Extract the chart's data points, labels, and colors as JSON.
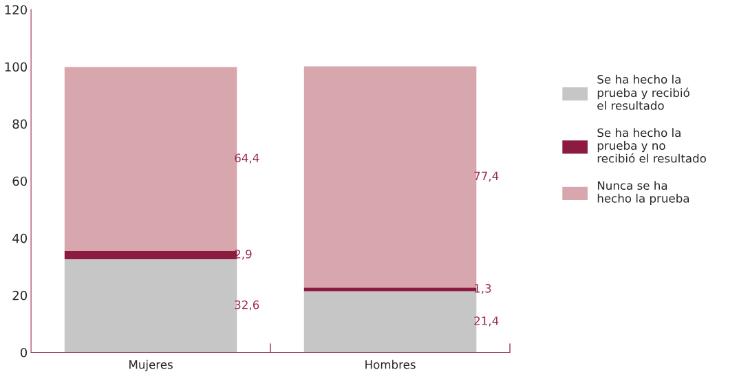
{
  "chart_data": {
    "type": "bar",
    "stacked": true,
    "categories": [
      "Mujeres",
      "Hombres"
    ],
    "series": [
      {
        "name": "Se ha hecho la\nprueba y recibió\nel resultado",
        "color": "#c6c6c6",
        "values": [
          32.6,
          21.4
        ],
        "value_labels": [
          "32,6",
          "21,4"
        ]
      },
      {
        "name": "Se ha hecho la\nprueba y no\nrecibió el resultado",
        "color": "#8b1c40",
        "values": [
          2.9,
          1.3
        ],
        "value_labels": [
          "2,9",
          "1,3"
        ]
      },
      {
        "name": "Nunca se ha\nhecho la prueba",
        "color": "#d8a6ad",
        "values": [
          64.4,
          77.4
        ],
        "value_labels": [
          "64,4",
          "77,4"
        ]
      }
    ],
    "ylim": [
      0,
      120
    ],
    "yticks": [
      0,
      20,
      40,
      60,
      80,
      100,
      120
    ],
    "grid": false,
    "legend": "right"
  }
}
